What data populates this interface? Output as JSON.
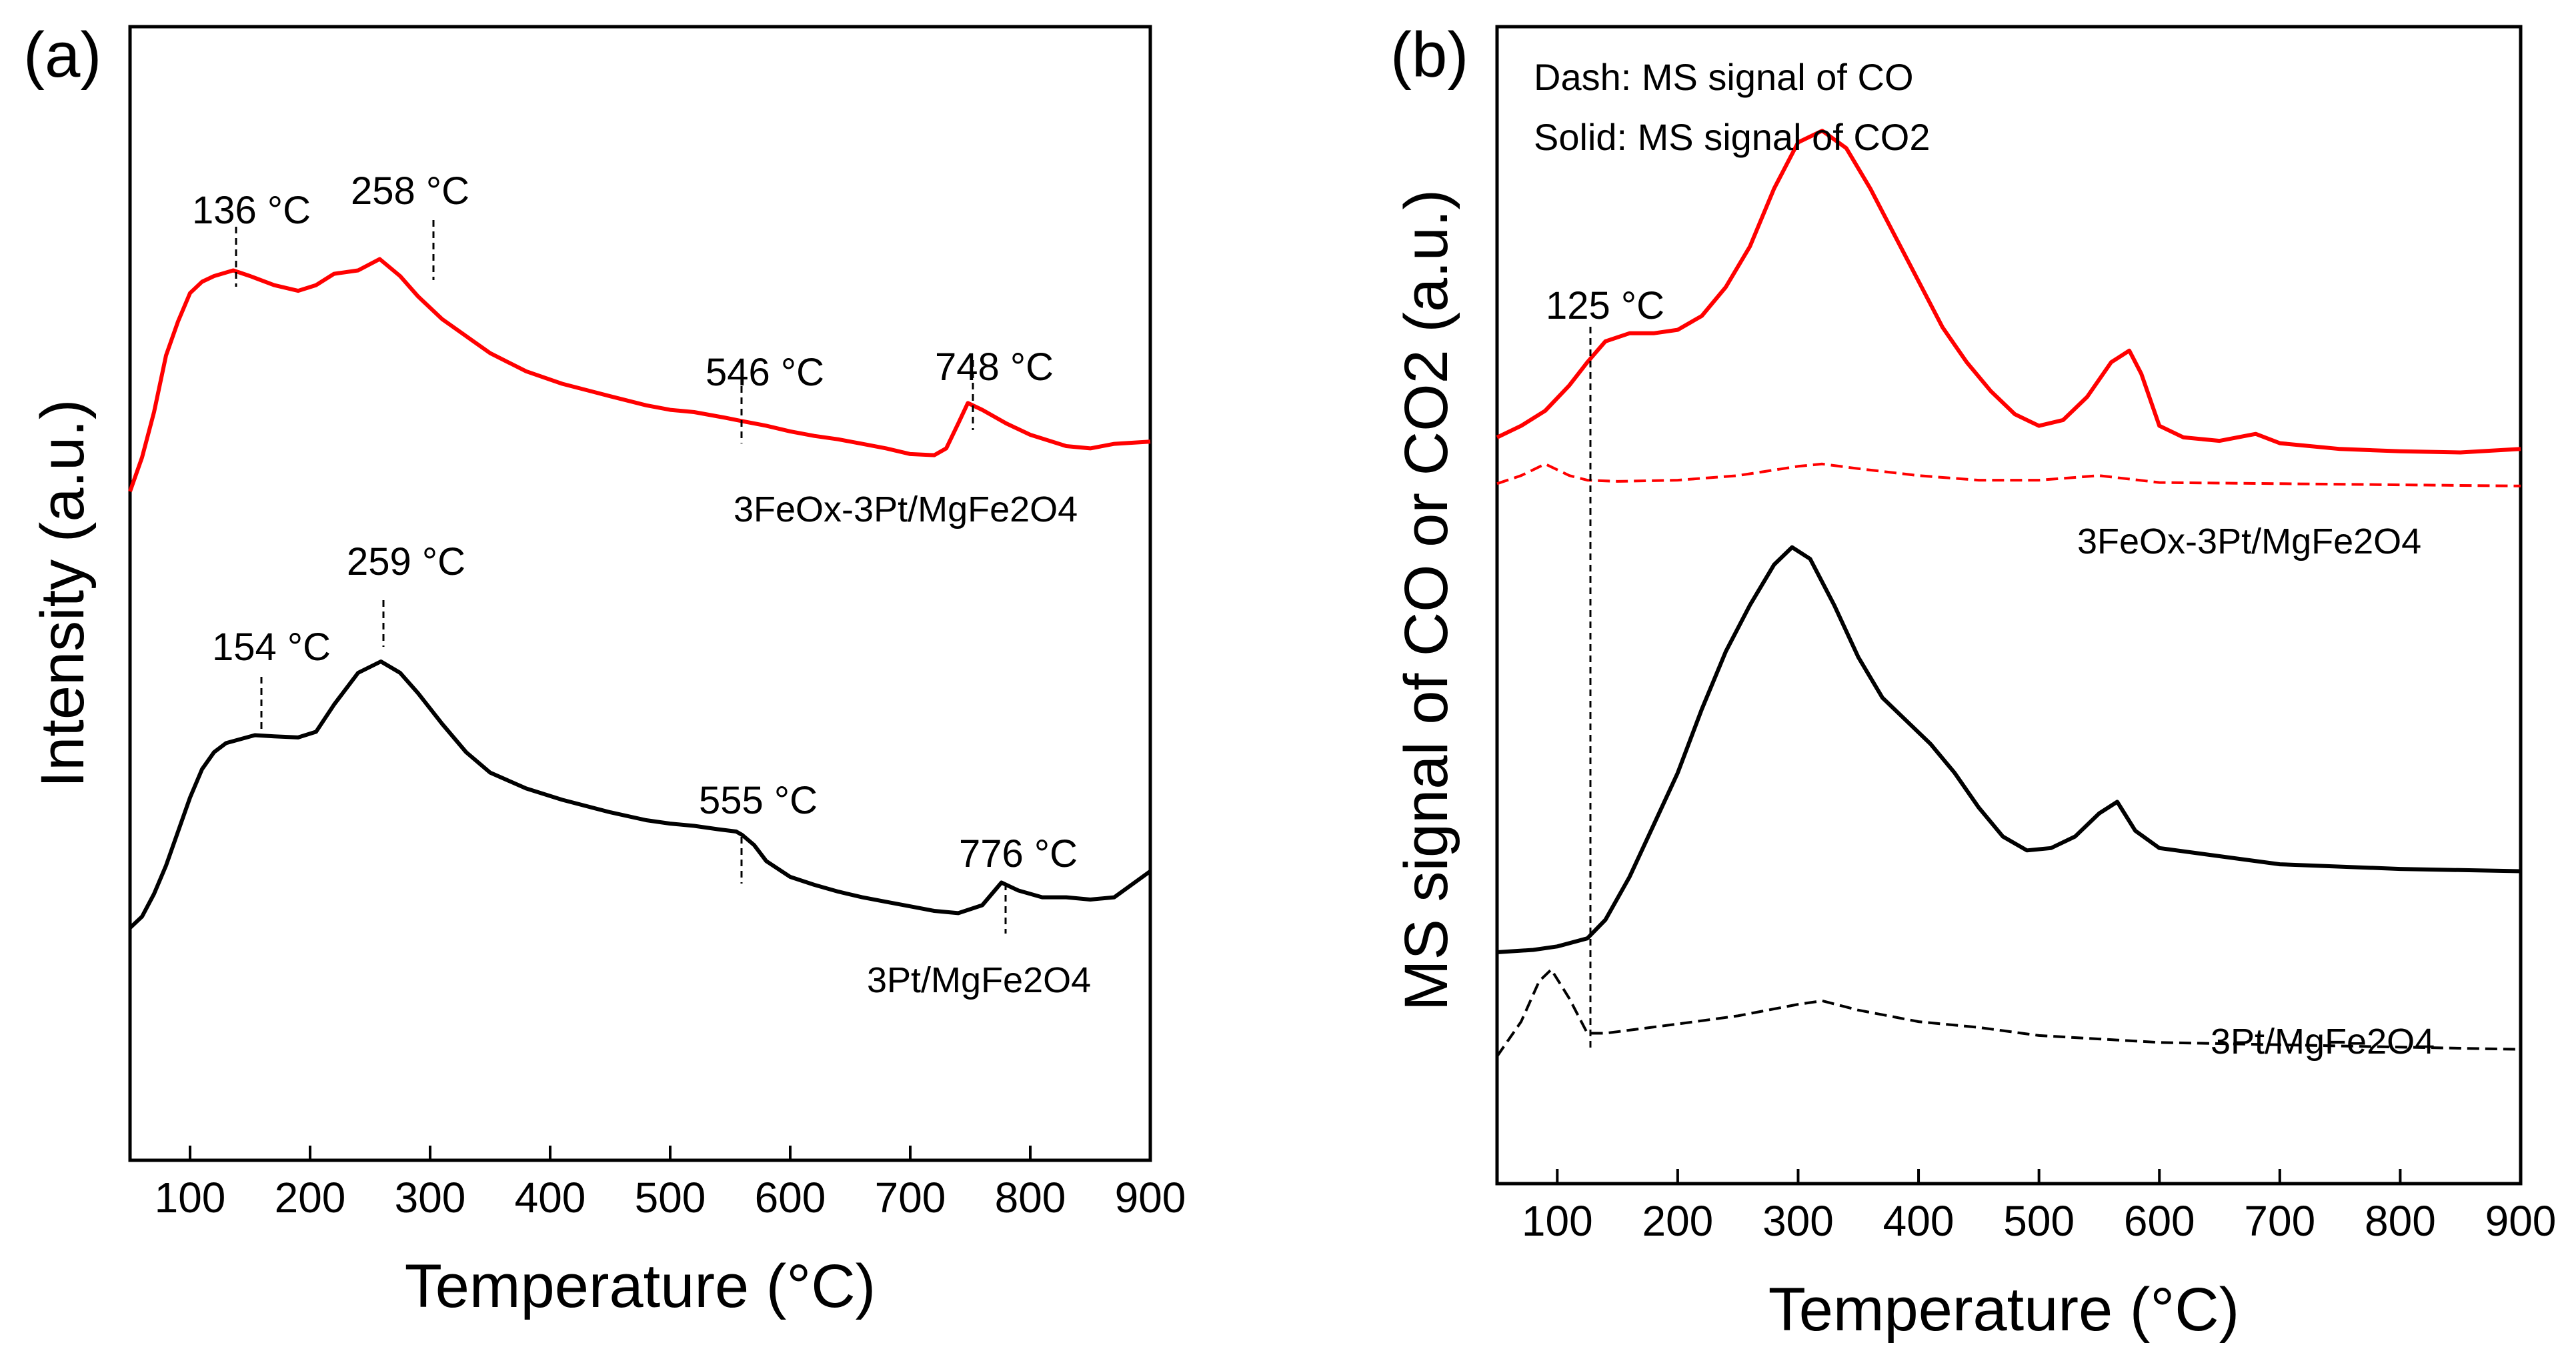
{
  "chart_data": [
    {
      "type": "line",
      "panel_label": "(a)",
      "xlabel": "Temperature (°C)",
      "ylabel": "Intensity (a.u.)",
      "xlim": [
        50,
        900
      ],
      "ylim": [
        0,
        1
      ],
      "xticks": [
        100,
        200,
        300,
        400,
        500,
        600,
        700,
        800,
        900
      ],
      "xtick_labels": [
        "100",
        "200",
        "300",
        "400",
        "500",
        "600",
        "700",
        "800",
        "900"
      ],
      "series": [
        {
          "name": "3FeOx-3Pt/MgFe2O4",
          "color": "#ff0000",
          "style": "solid",
          "x": [
            50,
            60,
            70,
            80,
            90,
            100,
            110,
            120,
            136,
            150,
            170,
            190,
            205,
            220,
            240,
            258,
            275,
            290,
            310,
            330,
            350,
            380,
            410,
            450,
            480,
            500,
            520,
            546,
            560,
            580,
            600,
            620,
            640,
            660,
            680,
            700,
            720,
            730,
            740,
            748,
            760,
            780,
            800,
            830,
            850,
            870,
            900
          ],
          "y": [
            0.59,
            0.62,
            0.66,
            0.71,
            0.74,
            0.765,
            0.775,
            0.78,
            0.785,
            0.78,
            0.772,
            0.767,
            0.772,
            0.782,
            0.785,
            0.795,
            0.78,
            0.762,
            0.742,
            0.727,
            0.712,
            0.696,
            0.685,
            0.674,
            0.666,
            0.662,
            0.66,
            0.655,
            0.652,
            0.648,
            0.643,
            0.639,
            0.636,
            0.632,
            0.628,
            0.623,
            0.622,
            0.628,
            0.65,
            0.668,
            0.662,
            0.65,
            0.64,
            0.63,
            0.628,
            0.632,
            0.634
          ]
        },
        {
          "name": "3Pt/MgFe2O4",
          "color": "#000000",
          "style": "solid",
          "x": [
            50,
            60,
            70,
            80,
            90,
            100,
            110,
            120,
            130,
            154,
            170,
            190,
            205,
            220,
            240,
            259,
            275,
            290,
            310,
            330,
            350,
            380,
            410,
            450,
            480,
            500,
            520,
            540,
            555,
            560,
            570,
            580,
            600,
            620,
            640,
            660,
            680,
            700,
            720,
            740,
            760,
            776,
            790,
            810,
            830,
            850,
            870,
            900
          ],
          "y": [
            0.205,
            0.215,
            0.235,
            0.26,
            0.29,
            0.32,
            0.345,
            0.36,
            0.368,
            0.375,
            0.374,
            0.373,
            0.378,
            0.402,
            0.43,
            0.44,
            0.43,
            0.412,
            0.385,
            0.36,
            0.342,
            0.328,
            0.318,
            0.307,
            0.3,
            0.297,
            0.295,
            0.292,
            0.29,
            0.287,
            0.278,
            0.264,
            0.25,
            0.243,
            0.237,
            0.232,
            0.228,
            0.224,
            0.22,
            0.218,
            0.225,
            0.245,
            0.238,
            0.232,
            0.232,
            0.23,
            0.232,
            0.255
          ]
        }
      ],
      "annotations": [
        {
          "text": "136 °C",
          "x": 136
        },
        {
          "text": "258 °C",
          "x": 258
        },
        {
          "text": "546 °C",
          "x": 546
        },
        {
          "text": "748 °C",
          "x": 748
        },
        {
          "text": "154 °C",
          "x": 154
        },
        {
          "text": "259 °C",
          "x": 259
        },
        {
          "text": "555 °C",
          "x": 555
        },
        {
          "text": "776 °C",
          "x": 776
        }
      ],
      "series_labels": [
        "3FeOx-3Pt/MgFe2O4",
        "3Pt/MgFe2O4"
      ]
    },
    {
      "type": "line",
      "panel_label": "(b)",
      "xlabel": "Temperature (°C)",
      "ylabel": "MS signal of CO or CO2 (a.u.)",
      "xlim": [
        50,
        900
      ],
      "ylim": [
        0,
        1
      ],
      "xticks": [
        100,
        200,
        300,
        400,
        500,
        600,
        700,
        800,
        900
      ],
      "xtick_labels": [
        "100",
        "200",
        "300",
        "400",
        "500",
        "600",
        "700",
        "800",
        "900"
      ],
      "legend_lines": [
        "Dash: MS signal of CO",
        "Solid: MS signal of CO2"
      ],
      "series": [
        {
          "name": "3FeOx-3Pt/MgFe2O4 CO2",
          "color": "#ff0000",
          "style": "solid",
          "x": [
            50,
            70,
            90,
            110,
            125,
            140,
            160,
            180,
            200,
            220,
            240,
            260,
            280,
            300,
            320,
            340,
            360,
            380,
            400,
            420,
            440,
            460,
            480,
            500,
            520,
            540,
            560,
            575,
            585,
            600,
            620,
            650,
            680,
            700,
            720,
            750,
            800,
            850,
            900
          ],
          "y": [
            0.645,
            0.655,
            0.668,
            0.69,
            0.71,
            0.728,
            0.735,
            0.735,
            0.738,
            0.75,
            0.775,
            0.81,
            0.86,
            0.9,
            0.91,
            0.895,
            0.86,
            0.82,
            0.78,
            0.74,
            0.71,
            0.685,
            0.665,
            0.655,
            0.66,
            0.68,
            0.71,
            0.72,
            0.7,
            0.655,
            0.645,
            0.642,
            0.648,
            0.64,
            0.638,
            0.635,
            0.633,
            0.632,
            0.635
          ]
        },
        {
          "name": "3FeOx-3Pt/MgFe2O4 CO",
          "color": "#ff0000",
          "style": "dashed",
          "x": [
            50,
            70,
            90,
            110,
            125,
            150,
            200,
            250,
            300,
            320,
            350,
            400,
            450,
            500,
            550,
            600,
            700,
            800,
            900
          ],
          "y": [
            0.605,
            0.612,
            0.622,
            0.612,
            0.608,
            0.607,
            0.608,
            0.612,
            0.62,
            0.622,
            0.618,
            0.612,
            0.608,
            0.608,
            0.612,
            0.606,
            0.605,
            0.604,
            0.603
          ]
        },
        {
          "name": "3Pt/MgFe2O4 CO2",
          "color": "#000000",
          "style": "solid",
          "x": [
            50,
            80,
            100,
            125,
            140,
            160,
            180,
            200,
            220,
            240,
            260,
            280,
            295,
            310,
            330,
            350,
            370,
            390,
            410,
            430,
            450,
            470,
            490,
            510,
            530,
            550,
            565,
            580,
            600,
            650,
            700,
            800,
            900
          ],
          "y": [
            0.2,
            0.202,
            0.205,
            0.212,
            0.228,
            0.265,
            0.31,
            0.355,
            0.41,
            0.46,
            0.5,
            0.535,
            0.55,
            0.54,
            0.5,
            0.455,
            0.42,
            0.4,
            0.38,
            0.355,
            0.325,
            0.3,
            0.288,
            0.29,
            0.3,
            0.32,
            0.33,
            0.305,
            0.29,
            0.283,
            0.276,
            0.272,
            0.27
          ]
        },
        {
          "name": "3Pt/MgFe2O4 CO",
          "color": "#000000",
          "style": "dashed",
          "x": [
            50,
            70,
            85,
            95,
            110,
            125,
            140,
            200,
            250,
            300,
            320,
            350,
            400,
            450,
            500,
            550,
            600,
            700,
            800,
            900
          ],
          "y": [
            0.11,
            0.14,
            0.175,
            0.185,
            0.16,
            0.13,
            0.13,
            0.138,
            0.145,
            0.155,
            0.158,
            0.15,
            0.14,
            0.135,
            0.128,
            0.125,
            0.122,
            0.12,
            0.118,
            0.116
          ]
        }
      ],
      "annotations": [
        {
          "text": "125 °C",
          "x": 125
        }
      ],
      "series_labels": [
        "3FeOx-3Pt/MgFe2O4",
        "3Pt/MgFe2O4"
      ]
    }
  ]
}
